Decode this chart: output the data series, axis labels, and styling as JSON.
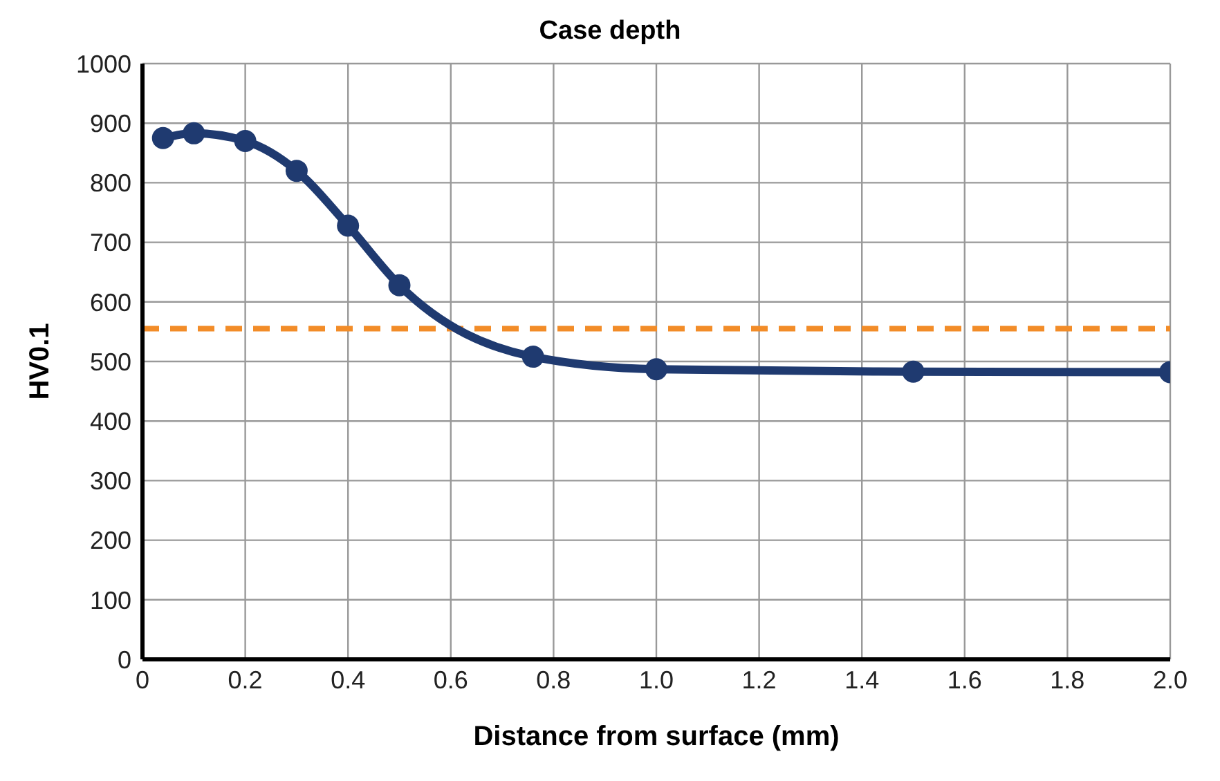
{
  "chart_data": {
    "type": "line",
    "title": "Case depth",
    "xlabel": "Distance from surface (mm)",
    "ylabel": "HV0.1",
    "series": [
      {
        "color": "#1f3a70",
        "x": [
          0.04,
          0.1,
          0.2,
          0.3,
          0.4,
          0.5,
          0.76,
          1.0,
          1.5,
          2.0
        ],
        "values": [
          875,
          883,
          870,
          820,
          728,
          628,
          508,
          487,
          483,
          482
        ]
      }
    ],
    "xlim": [
      0,
      2.0
    ],
    "xticks": [
      {
        "value": 0,
        "label": "0"
      },
      {
        "value": 0.2,
        "label": "0.2"
      },
      {
        "value": 0.4,
        "label": "0.4"
      },
      {
        "value": 0.6,
        "label": "0.6"
      },
      {
        "value": 0.8,
        "label": "0.8"
      },
      {
        "value": 1.0,
        "label": "1.0"
      },
      {
        "value": 1.2,
        "label": "1.2"
      },
      {
        "value": 1.4,
        "label": "1.4"
      },
      {
        "value": 1.6,
        "label": "1.6"
      },
      {
        "value": 1.8,
        "label": "1.8"
      },
      {
        "value": 2.0,
        "label": "2.0"
      }
    ],
    "ylim": [
      0,
      1000
    ],
    "yticks": [
      0,
      100,
      200,
      300,
      400,
      500,
      600,
      700,
      800,
      900,
      1000
    ],
    "ref_lines": [
      {
        "axis": "y",
        "value": 555,
        "color": "#f28c28",
        "line_style": "dashed"
      }
    ],
    "grid": true,
    "marker": "circle",
    "line_style": "solid"
  }
}
